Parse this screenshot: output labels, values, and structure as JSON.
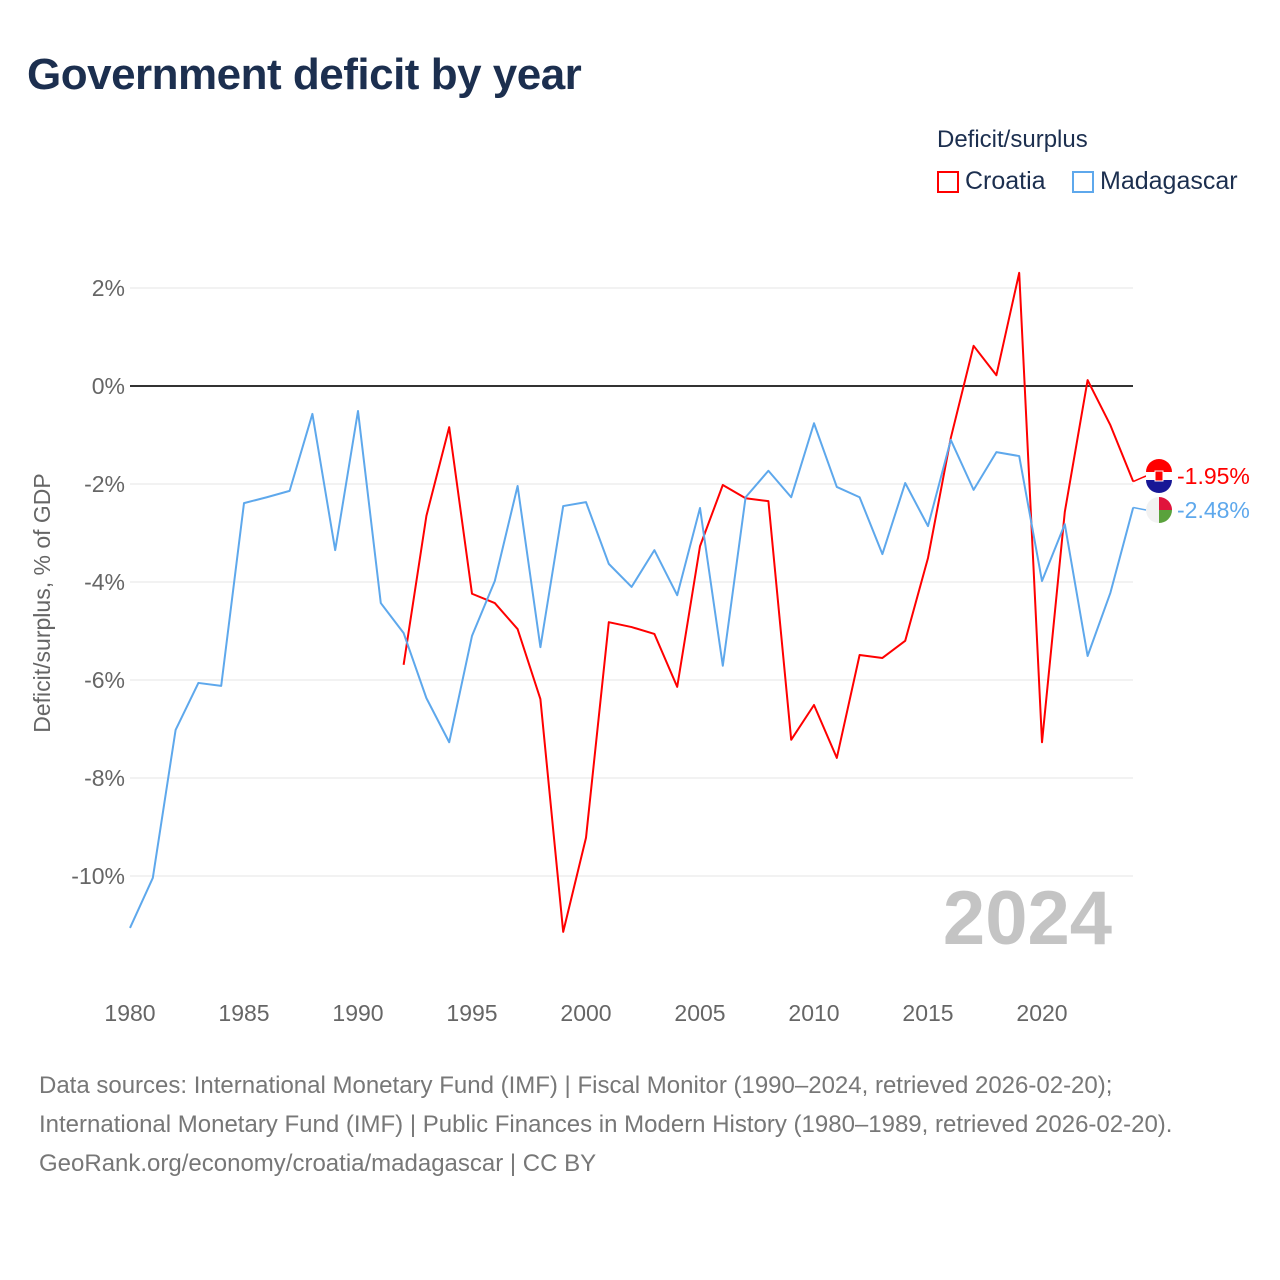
{
  "chart_data": {
    "type": "line",
    "title": "Government deficit by year",
    "ylabel": "Deficit/surplus, % of GDP",
    "xlabel": "",
    "xlim": [
      1980,
      2024
    ],
    "ylim": [
      -11.5,
      2.8
    ],
    "x_ticks": [
      1980,
      1985,
      1990,
      1995,
      2000,
      2005,
      2010,
      2015,
      2020
    ],
    "y_ticks": [
      2,
      0,
      -2,
      -4,
      -6,
      -8,
      -10
    ],
    "y_tick_labels": [
      "2%",
      "0%",
      "-2%",
      "-4%",
      "-6%",
      "-8%",
      "-10%"
    ],
    "x_tick_labels": [
      "1980",
      "1985",
      "1990",
      "1995",
      "2000",
      "2005",
      "2010",
      "2015",
      "2020"
    ],
    "legend_title": "Deficit/surplus",
    "legend_position": "top-right",
    "watermark_year": "2024",
    "series": [
      {
        "name": "Croatia",
        "color": "#ff0000",
        "end_label": "-1.95%",
        "start_year": 1992,
        "values": [
          -5.69,
          -2.65,
          -0.84,
          -4.24,
          -4.43,
          -4.96,
          -6.39,
          -11.14,
          -9.22,
          -4.82,
          -4.92,
          -5.06,
          -6.14,
          -3.27,
          -2.02,
          -2.29,
          -2.35,
          -7.22,
          -6.51,
          -7.59,
          -5.49,
          -5.55,
          -5.2,
          -3.51,
          -1.06,
          0.82,
          0.22,
          2.31,
          -7.27,
          -2.57,
          0.12,
          -0.8,
          -1.95
        ]
      },
      {
        "name": "Madagascar",
        "color": "#5ea8ec",
        "end_label": "-2.48%",
        "start_year": 1980,
        "values": [
          -11.06,
          -10.04,
          -7.02,
          -6.06,
          -6.12,
          -2.39,
          -2.27,
          -2.14,
          -0.57,
          -3.35,
          -0.51,
          -4.43,
          -5.04,
          -6.37,
          -7.27,
          -5.1,
          -3.98,
          -2.04,
          -5.33,
          -2.45,
          -2.37,
          -3.63,
          -4.1,
          -3.35,
          -4.27,
          -2.49,
          -5.71,
          -2.27,
          -1.73,
          -2.27,
          -0.76,
          -2.06,
          -2.27,
          -3.43,
          -1.98,
          -2.86,
          -1.1,
          -2.12,
          -1.35,
          -1.43,
          -3.98,
          -2.82,
          -5.51,
          -4.22,
          -2.48
        ]
      }
    ]
  },
  "footer": {
    "sources": "Data sources: International Monetary Fund (IMF) | Fiscal Monitor (1990–2024, retrieved 2026-02-20); International Monetary Fund (IMF) | Public Finances in Modern History (1980–1989, retrieved 2026-02-20).",
    "credit": "GeoRank.org/economy/croatia/madagascar | CC BY"
  }
}
